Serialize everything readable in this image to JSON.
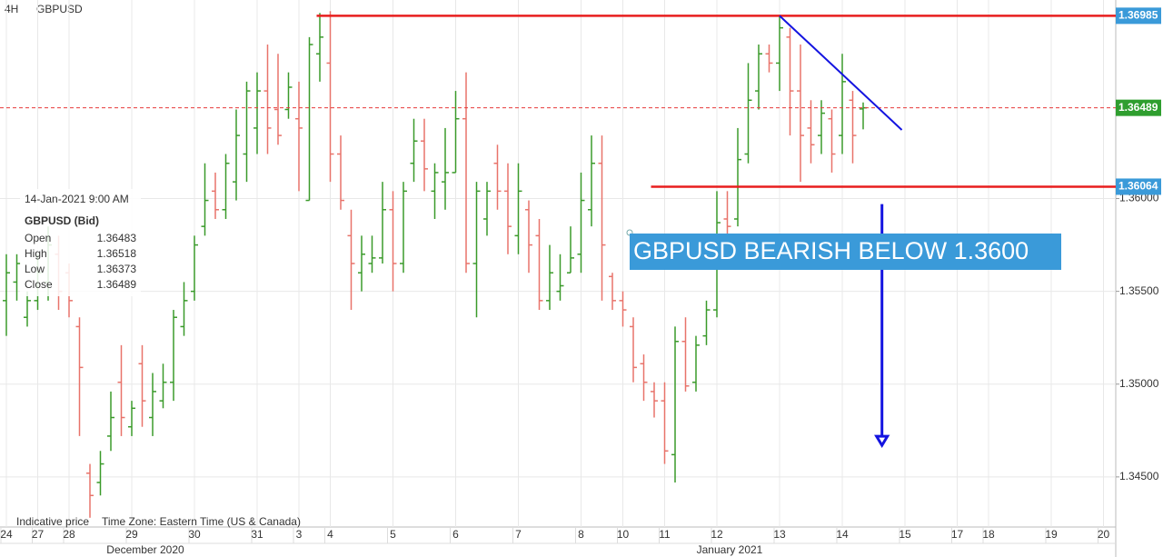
{
  "chart_data": {
    "type": "ohlc",
    "timeframe": "4H",
    "symbol": "GBPUSD",
    "footer": [
      "Indicative price",
      "Time Zone: Eastern Time (US & Canada)"
    ],
    "months": [
      "December 2020",
      "January 2021"
    ],
    "tooltip": {
      "date": "14-Jan-2021 9:00 AM",
      "title": "GBPUSD (Bid)",
      "labels": [
        "Open",
        "High",
        "Low",
        "Close"
      ]
    },
    "annotation": "GBPUSD BEARISH BELOW 1.3600",
    "annotation_color": "#3a9ad9",
    "up_color": "#3a9a2a",
    "down_color": "#e8736a",
    "grid": true,
    "ylim": [
      1.3423,
      1.3707
    ],
    "yticks": [
      {
        "value": 1.345,
        "label": "1.34500"
      },
      {
        "value": 1.35,
        "label": "1.35000"
      },
      {
        "value": 1.355,
        "label": "1.35500"
      },
      {
        "value": 1.36,
        "label": "1.36000"
      }
    ],
    "categories": [
      "24",
      null,
      null,
      "27",
      null,
      null,
      "28",
      null,
      null,
      null,
      null,
      null,
      "29",
      null,
      null,
      null,
      null,
      null,
      "30",
      null,
      null,
      null,
      null,
      null,
      "31",
      null,
      null,
      null,
      "3",
      null,
      null,
      "4",
      null,
      null,
      null,
      null,
      null,
      "5",
      null,
      null,
      null,
      null,
      null,
      "6",
      null,
      null,
      null,
      null,
      null,
      "7",
      null,
      null,
      null,
      null,
      null,
      "8",
      null,
      null,
      null,
      "10",
      null,
      null,
      null,
      "11",
      null,
      null,
      null,
      null,
      "12",
      null,
      null,
      null,
      null,
      null,
      "13",
      null,
      null,
      null,
      null,
      null,
      "14",
      null,
      null,
      null,
      null,
      null,
      "15",
      null,
      null,
      null,
      null,
      "17",
      null,
      null,
      "18",
      null,
      null,
      null,
      null,
      null,
      "19",
      null,
      null,
      null,
      null,
      "20"
    ],
    "open": [
      1.3545,
      1.3555,
      1.3536,
      1.3545,
      1.3555,
      1.357,
      1.356,
      1.3531,
      1.3452,
      1.3447,
      1.3472,
      1.3501,
      1.3477,
      1.3511,
      1.3482,
      1.3491,
      1.3501,
      1.3531,
      1.355,
      1.3585,
      1.3604,
      1.3594,
      1.3609,
      1.3624,
      1.3638,
      1.3658,
      1.3648,
      1.3648,
      1.3643,
      1.3599,
      1.3678,
      1.3673,
      1.3624,
      1.358,
      1.356,
      1.3565,
      1.3568,
      1.3594,
      1.3565,
      1.3619,
      1.3631,
      1.3604,
      1.3609,
      1.3614,
      1.3643,
      1.3565,
      1.3589,
      1.3619,
      1.3604,
      1.358,
      1.3594,
      1.358,
      1.3545,
      1.355,
      1.356,
      1.357,
      1.3594,
      1.3619,
      1.3558,
      1.3545,
      1.3531,
      1.3511,
      1.3496,
      1.3491,
      1.3462,
      1.3523,
      1.3501,
      1.3526,
      1.354,
      1.3589,
      1.3589,
      1.3624,
      1.3658,
      1.3678,
      1.3673,
      1.3687,
      1.3658,
      1.3638,
      1.3634,
      1.3643,
      1.3634,
      1.3653,
      1.36483,
      null,
      null,
      null,
      null,
      null,
      null,
      null,
      null,
      null,
      null,
      null,
      null,
      null,
      null,
      null,
      null,
      null,
      null,
      null,
      null,
      null,
      null,
      null
    ],
    "high": [
      1.357,
      1.357,
      1.355,
      1.357,
      1.3585,
      1.358,
      1.3565,
      1.3536,
      1.3457,
      1.3464,
      1.3496,
      1.3521,
      1.3491,
      1.3521,
      1.3506,
      1.3511,
      1.354,
      1.3555,
      1.358,
      1.3619,
      1.3614,
      1.3624,
      1.3648,
      1.3663,
      1.3668,
      1.3683,
      1.3678,
      1.3668,
      1.3663,
      1.3687,
      1.37,
      1.3701,
      1.3634,
      1.3594,
      1.358,
      1.358,
      1.3609,
      1.3604,
      1.3609,
      1.3643,
      1.3643,
      1.3619,
      1.3638,
      1.3658,
      1.3668,
      1.3609,
      1.3609,
      1.3629,
      1.3619,
      1.3619,
      1.3599,
      1.3589,
      1.3575,
      1.357,
      1.3585,
      1.3614,
      1.3634,
      1.3634,
      1.356,
      1.355,
      1.3536,
      1.3516,
      1.3501,
      1.3501,
      1.3531,
      1.3536,
      1.3526,
      1.3545,
      1.3604,
      1.3604,
      1.3638,
      1.3673,
      1.3683,
      1.3683,
      1.3698,
      1.3692,
      1.3683,
      1.3653,
      1.3653,
      1.3648,
      1.3678,
      1.3658,
      1.36518,
      null,
      null,
      null,
      null,
      null,
      null,
      null,
      null,
      null,
      null,
      null,
      null,
      null,
      null,
      null,
      null,
      null,
      null,
      null,
      null,
      null,
      null,
      null
    ],
    "low": [
      1.3526,
      1.3545,
      1.3531,
      1.354,
      1.3545,
      1.354,
      1.3536,
      1.3472,
      1.3428,
      1.344,
      1.3464,
      1.3472,
      1.3472,
      1.3477,
      1.3472,
      1.3487,
      1.3491,
      1.3526,
      1.3545,
      1.358,
      1.3589,
      1.3589,
      1.3599,
      1.3609,
      1.3624,
      1.3624,
      1.3629,
      1.3643,
      1.3604,
      1.3599,
      1.3663,
      1.3609,
      1.3594,
      1.354,
      1.355,
      1.356,
      1.3565,
      1.355,
      1.356,
      1.3609,
      1.3604,
      1.3589,
      1.3594,
      1.3614,
      1.356,
      1.3536,
      1.358,
      1.3594,
      1.357,
      1.357,
      1.356,
      1.354,
      1.354,
      1.3545,
      1.356,
      1.356,
      1.3585,
      1.3545,
      1.354,
      1.3531,
      1.3501,
      1.3491,
      1.3482,
      1.3457,
      1.3447,
      1.3496,
      1.3496,
      1.3521,
      1.3536,
      1.358,
      1.3585,
      1.3619,
      1.3648,
      1.3668,
      1.3658,
      1.3634,
      1.3609,
      1.3619,
      1.3624,
      1.3614,
      1.3624,
      1.3619,
      1.36373,
      null,
      null,
      null,
      null,
      null,
      null,
      null,
      null,
      null,
      null,
      null,
      null,
      null,
      null,
      null,
      null,
      null,
      null,
      null,
      null,
      null,
      null,
      null
    ],
    "close": [
      1.356,
      1.3565,
      1.3545,
      1.356,
      1.3575,
      1.355,
      1.3545,
      1.3509,
      1.344,
      1.3457,
      1.3482,
      1.3482,
      1.3487,
      1.3491,
      1.3496,
      1.3501,
      1.3536,
      1.3545,
      1.3575,
      1.3599,
      1.3594,
      1.3619,
      1.3634,
      1.3658,
      1.3658,
      1.3638,
      1.3634,
      1.366,
      1.3638,
      1.3683,
      1.3687,
      1.3624,
      1.3599,
      1.3565,
      1.357,
      1.3568,
      1.3594,
      1.3565,
      1.3604,
      1.3631,
      1.3616,
      1.3614,
      1.3614,
      1.3643,
      1.3565,
      1.3604,
      1.3604,
      1.3604,
      1.3585,
      1.3604,
      1.3575,
      1.3545,
      1.356,
      1.3553,
      1.3568,
      1.3599,
      1.3619,
      1.3575,
      1.3545,
      1.354,
      1.3509,
      1.3501,
      1.3491,
      1.3464,
      1.3523,
      1.3499,
      1.3521,
      1.354,
      1.3587,
      1.3585,
      1.3621,
      1.3653,
      1.3678,
      1.3673,
      1.3692,
      1.3658,
      1.3634,
      1.3629,
      1.3646,
      1.3624,
      1.3663,
      1.3634,
      1.36489,
      null,
      null,
      null,
      null,
      null,
      null,
      null,
      null,
      null,
      null,
      null,
      null,
      null,
      null,
      null,
      null,
      null,
      null,
      null,
      null,
      null,
      null,
      null
    ],
    "current_price_color": "#e83a3a",
    "current_tag_color": "#2f9e2f",
    "levels": [
      {
        "value": 1.36985,
        "label": "1.36985",
        "from": 31,
        "color": "#e81e1e",
        "tag_color": "#3a9ad9"
      },
      {
        "value": 1.36064,
        "label": "1.36064",
        "from": 63,
        "color": "#e81e1e",
        "tag_color": "#3a9ad9"
      }
    ],
    "trendline": {
      "x": [
        74,
        85.7
      ],
      "y": [
        1.36985,
        1.3637
      ],
      "color": "#1414e0"
    },
    "arrow": {
      "x": 83.8,
      "y": [
        1.3597,
        1.3467
      ],
      "color": "#1414e0"
    }
  }
}
